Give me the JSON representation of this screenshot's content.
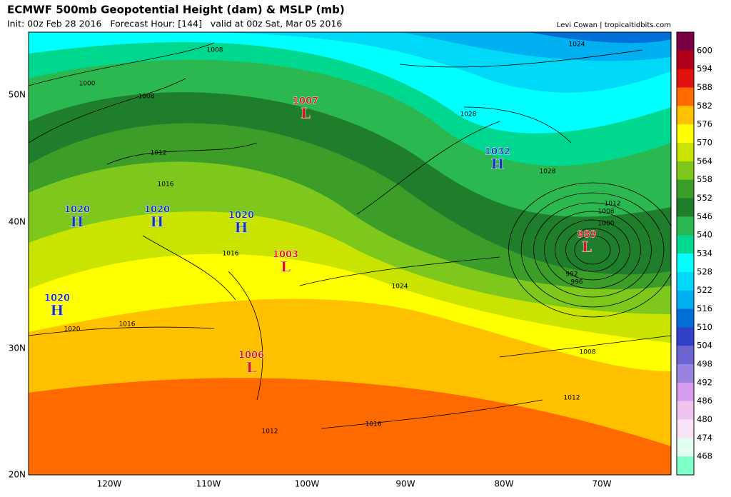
{
  "header": {
    "title": "ECMWF 500mb Geopotential Height (dam) & MSLP (mb)",
    "subtitle": "Init: 00z Feb 28 2016   Forecast Hour: [144]   valid at 00z Sat, Mar 05 2016",
    "credit": "Levi Cowan | tropicaltidbits.com"
  },
  "map": {
    "lat_labels": [
      "50N",
      "40N",
      "30N",
      "20N"
    ],
    "lon_labels": [
      "120W",
      "110W",
      "100W",
      "90W",
      "80W",
      "70W"
    ],
    "pressure_centers": [
      {
        "symbol": "H",
        "value": "1020"
      },
      {
        "symbol": "H",
        "value": "1020"
      },
      {
        "symbol": "H",
        "value": "1020"
      },
      {
        "symbol": "H",
        "value": "1020"
      },
      {
        "symbol": "L",
        "value": "1007"
      },
      {
        "symbol": "H",
        "value": "1032"
      },
      {
        "symbol": "L",
        "value": "1003"
      },
      {
        "symbol": "L",
        "value": "1006"
      },
      {
        "symbol": "L",
        "value": "989"
      }
    ],
    "isobar_labels": [
      "1008",
      "1000",
      "1008",
      "1012",
      "1016",
      "1016",
      "1016",
      "1020",
      "1024",
      "1028",
      "1028",
      "1024",
      "1012",
      "1008",
      "1000",
      "992",
      "996",
      "1008",
      "1012",
      "1016",
      "1012"
    ]
  },
  "colorbar": {
    "labels": [
      600,
      594,
      588,
      582,
      576,
      570,
      564,
      558,
      552,
      546,
      540,
      534,
      528,
      522,
      516,
      510,
      504,
      498,
      492,
      486,
      480,
      474,
      468
    ],
    "colors": [
      "#7a0044",
      "#b0001c",
      "#e0120e",
      "#ff6a00",
      "#ffc000",
      "#ffff00",
      "#c8e400",
      "#7ec81e",
      "#3c9e28",
      "#1e7e2c",
      "#2cb850",
      "#00d890",
      "#00ffff",
      "#00d8f8",
      "#00b0f0",
      "#0070d8",
      "#3040c8",
      "#6c64d0",
      "#9a82e0",
      "#d89cf0",
      "#f0c4f0",
      "#f8e4f8",
      "#e0fff0",
      "#80ffc8"
    ]
  }
}
